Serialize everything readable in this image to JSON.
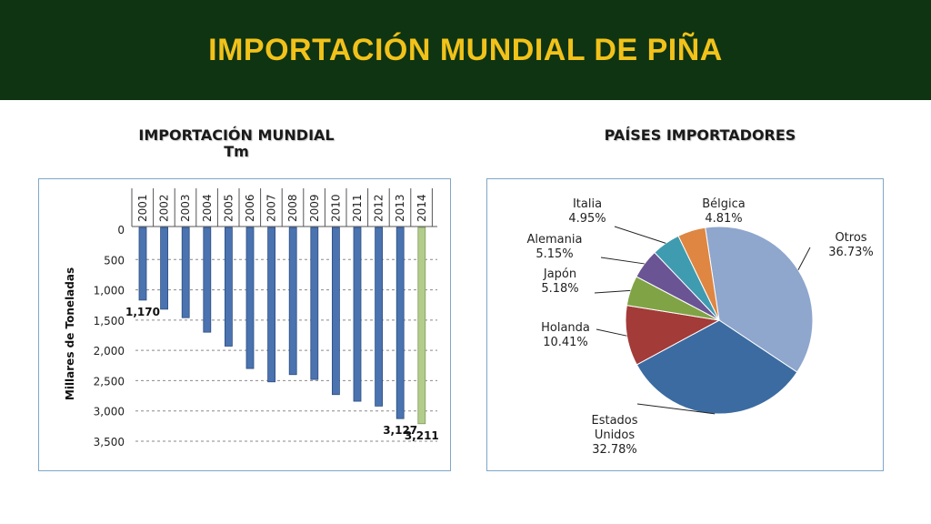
{
  "title": "IMPORTACIÓN MUNDIAL DE PIÑA",
  "left_subtitle_line1": "IMPORTACIÓN MUNDIAL",
  "left_subtitle_line2": "Tm",
  "right_subtitle": "PAÍSES IMPORTADORES",
  "colors": {
    "banner": "#0e3412",
    "title": "#f2c21a",
    "bar": "#4a73b0",
    "bar_projected": "#b2cc8c"
  },
  "chart_data": [
    {
      "type": "bar",
      "orientation": "vertical-inverted",
      "categories": [
        "2001",
        "2002",
        "2003",
        "2004",
        "2005",
        "2006",
        "2007",
        "2008",
        "2009",
        "2010",
        "2011",
        "2012",
        "2013",
        "2014"
      ],
      "values": [
        1170,
        1320,
        1460,
        1700,
        1930,
        2300,
        2520,
        2400,
        2480,
        2730,
        2840,
        2920,
        3127,
        3211
      ],
      "ylabel": "Millares de Toneladas",
      "ylim": [
        0,
        3500
      ],
      "yticks": [
        "0",
        "500",
        "1,000",
        "1,500",
        "2,000",
        "2,500",
        "3,000",
        "3,500"
      ],
      "data_labels": [
        {
          "category": "2001",
          "text": "1,170"
        },
        {
          "category": "2013",
          "text": "3,127"
        },
        {
          "category": "2014",
          "text": "3,211"
        }
      ],
      "highlight_category": "2014",
      "grid": true,
      "x_axis_position": "top"
    },
    {
      "type": "pie",
      "slices": [
        {
          "label": "Otros",
          "value": 36.73,
          "display": "36.73%",
          "color": "#8fa6cd"
        },
        {
          "label": "Estados Unidos",
          "label_lines": [
            "Estados",
            "Unidos"
          ],
          "value": 32.78,
          "display": "32.78%",
          "color": "#3b6ba1"
        },
        {
          "label": "Holanda",
          "value": 10.41,
          "display": "10.41%",
          "color": "#a33b39"
        },
        {
          "label": "Japón",
          "value": 5.18,
          "display": "5.18%",
          "color": "#80a445"
        },
        {
          "label": "Alemania",
          "value": 5.15,
          "display": "5.15%",
          "color": "#6a5494"
        },
        {
          "label": "Italia",
          "value": 4.95,
          "display": "4.95%",
          "color": "#3f9bb0"
        },
        {
          "label": "Bélgica",
          "value": 4.81,
          "display": "4.81%",
          "color": "#de8642"
        }
      ]
    }
  ]
}
